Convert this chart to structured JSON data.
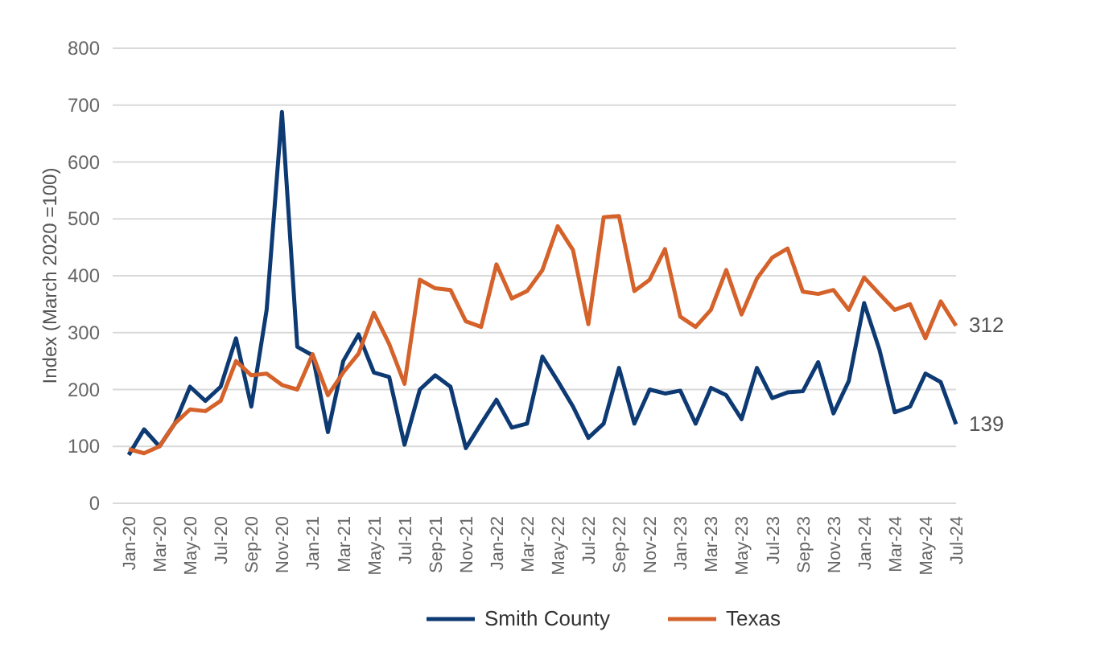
{
  "chart_data": {
    "type": "line",
    "ylabel": "Index (March 2020 =100)",
    "categories": [
      "Jan-20",
      null,
      "Mar-20",
      null,
      "May-20",
      null,
      "Jul-20",
      null,
      "Sep-20",
      null,
      "Nov-20",
      null,
      "Jan-21",
      null,
      "Mar-21",
      null,
      "May-21",
      null,
      "Jul-21",
      null,
      "Sep-21",
      null,
      "Nov-21",
      null,
      "Jan-22",
      null,
      "Mar-22",
      null,
      "May-22",
      null,
      "Jul-22",
      null,
      "Sep-22",
      null,
      "Nov-22",
      null,
      "Jan-23",
      null,
      "Mar-23",
      null,
      "May-23",
      null,
      "Jul-23",
      null,
      "Sep-23",
      null,
      "Nov-23",
      null,
      "Jan-24",
      null,
      "Mar-24",
      null,
      "May-24",
      null,
      "Jul-24"
    ],
    "series": [
      {
        "name": "Smith County",
        "color": "#0d3a73",
        "values": [
          85,
          130,
          100,
          140,
          205,
          180,
          205,
          290,
          170,
          340,
          688,
          275,
          260,
          125,
          250,
          297,
          230,
          222,
          103,
          200,
          225,
          205,
          97,
          140,
          182,
          133,
          140,
          258,
          215,
          170,
          115,
          140,
          238,
          140,
          200,
          193,
          198,
          140,
          203,
          190,
          148,
          238,
          185,
          195,
          197,
          248,
          158,
          215,
          352,
          270,
          160,
          170,
          228,
          213,
          139
        ],
        "value_labels": [
          null,
          null,
          null,
          null,
          null,
          null,
          null,
          null,
          null,
          null,
          null,
          null,
          null,
          null,
          null,
          null,
          null,
          null,
          null,
          null,
          null,
          null,
          null,
          null,
          null,
          null,
          null,
          null,
          null,
          null,
          null,
          null,
          null,
          null,
          null,
          null,
          null,
          null,
          null,
          null,
          null,
          null,
          null,
          null,
          null,
          null,
          null,
          null,
          null,
          null,
          null,
          null,
          null,
          null,
          "139"
        ]
      },
      {
        "name": "Texas",
        "color": "#d4622a",
        "values": [
          95,
          88,
          100,
          140,
          165,
          162,
          180,
          250,
          225,
          228,
          208,
          200,
          262,
          190,
          230,
          263,
          335,
          280,
          210,
          393,
          378,
          375,
          320,
          310,
          420,
          360,
          373,
          410,
          487,
          445,
          315,
          503,
          505,
          373,
          393,
          447,
          328,
          310,
          340,
          410,
          332,
          395,
          432,
          448,
          372,
          368,
          375,
          340,
          397,
          368,
          340,
          350,
          290,
          355,
          312
        ],
        "value_labels": [
          null,
          null,
          null,
          null,
          null,
          null,
          null,
          null,
          null,
          null,
          null,
          null,
          null,
          null,
          null,
          null,
          null,
          null,
          null,
          null,
          null,
          null,
          null,
          null,
          null,
          null,
          null,
          null,
          null,
          null,
          null,
          null,
          null,
          null,
          null,
          null,
          null,
          null,
          null,
          null,
          null,
          null,
          null,
          null,
          null,
          null,
          null,
          null,
          null,
          null,
          null,
          null,
          null,
          null,
          "312"
        ]
      }
    ],
    "ylim": [
      0,
      800
    ],
    "yticks": [
      0,
      100,
      200,
      300,
      400,
      500,
      600,
      700,
      800
    ],
    "grid": "y",
    "legend": "bottom"
  }
}
